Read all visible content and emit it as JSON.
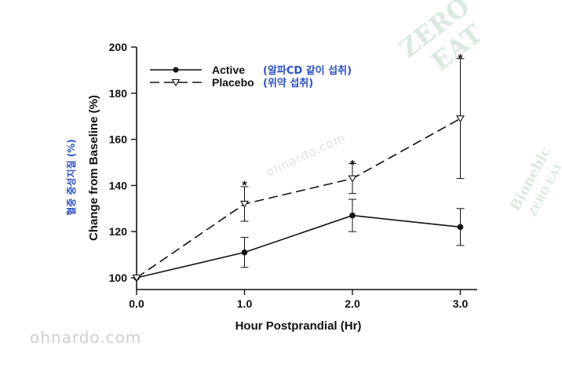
{
  "watermarks": {
    "site": "ohnardo.com",
    "seal_top": [
      "ZERO",
      "EAT"
    ],
    "seal_right": [
      "Bionebic",
      "ZERO EAT"
    ]
  },
  "ko_annotations": {
    "y_axis_note": "혈중 중성지질 (%)",
    "active_note": "(알파CD 같이 섭취)",
    "placebo_note": "(위약 섭취)"
  },
  "chart_data": {
    "type": "line",
    "xlabel": "Hour Postprandial (Hr)",
    "ylabel": "Change from Baseline (%)",
    "xlim": [
      0,
      3.15
    ],
    "ylim": [
      95,
      200
    ],
    "x_ticks": [
      0,
      1,
      2,
      3
    ],
    "x_tick_labels": [
      "0.0",
      "1.0",
      "2.0",
      "3.0"
    ],
    "y_ticks": [
      100,
      120,
      140,
      160,
      180,
      200
    ],
    "y_tick_labels": [
      "100",
      "120",
      "140",
      "160",
      "180",
      "200"
    ],
    "grid": false,
    "legend_position": "top-left",
    "series": [
      {
        "name": "Active",
        "marker": "filled-circle",
        "line_style": "solid",
        "x": [
          0,
          1,
          2,
          3
        ],
        "y": [
          100,
          111,
          127,
          122
        ],
        "err": [
          0,
          6.5,
          7,
          8
        ]
      },
      {
        "name": "Placebo",
        "marker": "open-triangle-down",
        "line_style": "dashed",
        "x": [
          0,
          1,
          2,
          3
        ],
        "y": [
          100,
          132,
          143,
          169
        ],
        "err": [
          0,
          7.5,
          6.5,
          26
        ]
      }
    ],
    "annotations": [
      {
        "text": "*",
        "x": 1,
        "y": 141
      },
      {
        "text": "*",
        "x": 2,
        "y": 150
      },
      {
        "text": "*",
        "x": 3,
        "y": 196
      }
    ],
    "colors": {
      "lines": "#111111",
      "notes": "#2a4fc9"
    }
  }
}
